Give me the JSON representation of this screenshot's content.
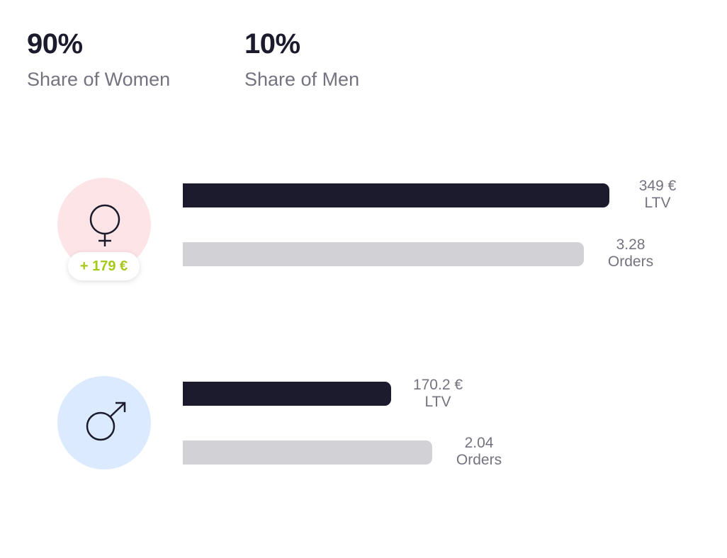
{
  "summary": {
    "women": {
      "value": "90%",
      "label": "Share of Women"
    },
    "men": {
      "value": "10%",
      "label": "Share of Men"
    }
  },
  "women": {
    "icon": "female-symbol-icon",
    "badge": "+ 179 €",
    "ltv": {
      "value": "349 €",
      "unit": "LTV"
    },
    "orders": {
      "value": "3.28",
      "unit": "Orders"
    }
  },
  "men": {
    "icon": "male-symbol-icon",
    "ltv": {
      "value": "170.2 €",
      "unit": "LTV"
    },
    "orders": {
      "value": "2.04",
      "unit": "Orders"
    }
  },
  "colors": {
    "ltv_bar": "#1c1b2e",
    "orders_bar": "#d2d1d6",
    "women_circle": "#fde4e7",
    "men_circle": "#dbeafe",
    "badge_text": "#a6c81a"
  },
  "chart_data": {
    "type": "bar",
    "orientation": "horizontal",
    "categories": [
      "Women",
      "Men"
    ],
    "series": [
      {
        "name": "LTV",
        "values": [
          349,
          170.2
        ]
      },
      {
        "name": "Orders",
        "values": [
          3.28,
          2.04
        ]
      }
    ]
  }
}
